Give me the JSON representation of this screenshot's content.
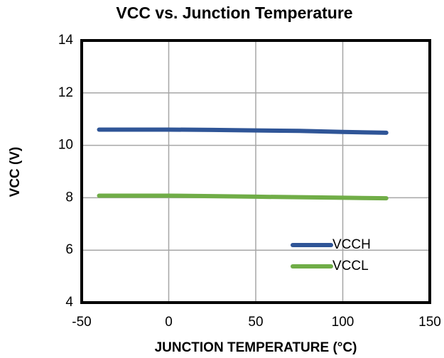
{
  "chart_data": {
    "type": "line",
    "title": "VCC vs. Junction Temperature",
    "x_label": "JUNCTION TEMPERATURE (°C)",
    "y_label": "VCC (V)",
    "x": [
      -40,
      0,
      25,
      50,
      75,
      100,
      125
    ],
    "series": [
      {
        "name": "VCCH",
        "color": "#2f5597",
        "values": [
          10.6,
          10.6,
          10.59,
          10.57,
          10.55,
          10.51,
          10.48
        ]
      },
      {
        "name": "VCCL",
        "color": "#70ad47",
        "values": [
          8.08,
          8.08,
          8.06,
          8.04,
          8.02,
          8.0,
          7.98
        ]
      }
    ],
    "xlim": [
      -50,
      150
    ],
    "xticks": [
      -50,
      0,
      50,
      100,
      150
    ],
    "ylim": [
      4,
      14
    ],
    "yticks": [
      4,
      6,
      8,
      10,
      12,
      14
    ],
    "grid": true,
    "legend": "lower right"
  }
}
